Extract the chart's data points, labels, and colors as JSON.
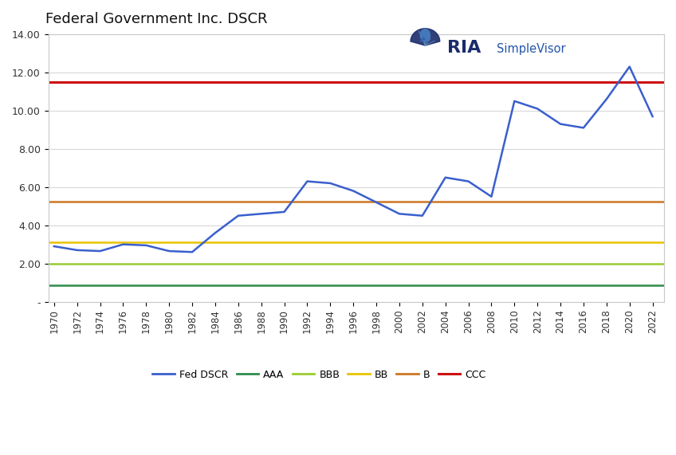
{
  "title": "Federal Government Inc. DSCR",
  "years": [
    1970,
    1972,
    1974,
    1976,
    1978,
    1980,
    1982,
    1984,
    1986,
    1988,
    1990,
    1992,
    1994,
    1996,
    1998,
    2000,
    2002,
    2004,
    2006,
    2008,
    2010,
    2012,
    2014,
    2016,
    2018,
    2020,
    2022
  ],
  "fed_dscr": [
    2.9,
    2.7,
    2.65,
    3.0,
    2.95,
    2.65,
    2.6,
    3.6,
    4.5,
    4.6,
    4.7,
    6.3,
    6.2,
    5.8,
    5.2,
    4.6,
    4.5,
    6.5,
    6.3,
    5.5,
    10.5,
    10.1,
    9.3,
    9.1,
    10.6,
    12.3,
    9.7
  ],
  "aaa_level": 0.85,
  "bbb_level": 2.0,
  "bb_level": 3.1,
  "b_level": 5.25,
  "ccc_level": 11.5,
  "aaa_color": "#2e8b4a",
  "bbb_color": "#9acd32",
  "bb_color": "#e8c400",
  "b_color": "#cc7722",
  "ccc_color": "#cc1111",
  "fed_color": "#3a5fcd",
  "ylim_min": 0,
  "ylim_max": 14.0,
  "yticks": [
    0,
    2.0,
    4.0,
    6.0,
    8.0,
    10.0,
    12.0,
    14.0
  ],
  "ytick_labels": [
    "-",
    "2.00",
    "4.00",
    "6.00",
    "8.00",
    "10.00",
    "12.00",
    "14.00"
  ],
  "background_color": "#ffffff",
  "plot_bg_color": "#ffffff",
  "border_color": "#c8c8c8",
  "grid_color": "#d8d8d8",
  "ria_dark": "#1a2c6b",
  "ria_blue": "#2255aa"
}
